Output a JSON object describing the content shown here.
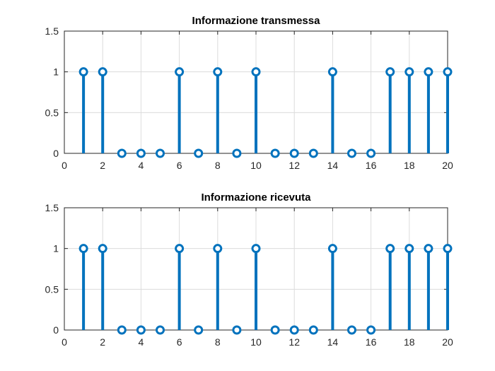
{
  "chart_data": [
    {
      "type": "stem",
      "title": "Informazione transmessa",
      "xlabel": "",
      "ylabel": "",
      "xlim": [
        0,
        20
      ],
      "ylim": [
        0,
        1.5
      ],
      "grid": true,
      "color": "#0072BD",
      "xticks": [
        0,
        2,
        4,
        6,
        8,
        10,
        12,
        14,
        16,
        18,
        20
      ],
      "yticks": [
        0,
        0.5,
        1,
        1.5
      ],
      "x": [
        1,
        2,
        3,
        4,
        5,
        6,
        7,
        8,
        9,
        10,
        11,
        12,
        13,
        14,
        15,
        16,
        17,
        18,
        19,
        20
      ],
      "values": [
        1,
        1,
        0,
        0,
        0,
        1,
        0,
        1,
        0,
        1,
        0,
        0,
        0,
        1,
        0,
        0,
        1,
        1,
        1,
        1
      ]
    },
    {
      "type": "stem",
      "title": "Informazione ricevuta",
      "xlabel": "",
      "ylabel": "",
      "xlim": [
        0,
        20
      ],
      "ylim": [
        0,
        1.5
      ],
      "grid": true,
      "color": "#0072BD",
      "xticks": [
        0,
        2,
        4,
        6,
        8,
        10,
        12,
        14,
        16,
        18,
        20
      ],
      "yticks": [
        0,
        0.5,
        1,
        1.5
      ],
      "x": [
        1,
        2,
        3,
        4,
        5,
        6,
        7,
        8,
        9,
        10,
        11,
        12,
        13,
        14,
        15,
        16,
        17,
        18,
        19,
        20
      ],
      "values": [
        1,
        1,
        0,
        0,
        0,
        1,
        0,
        1,
        0,
        1,
        0,
        0,
        0,
        1,
        0,
        0,
        1,
        1,
        1,
        1
      ]
    }
  ]
}
